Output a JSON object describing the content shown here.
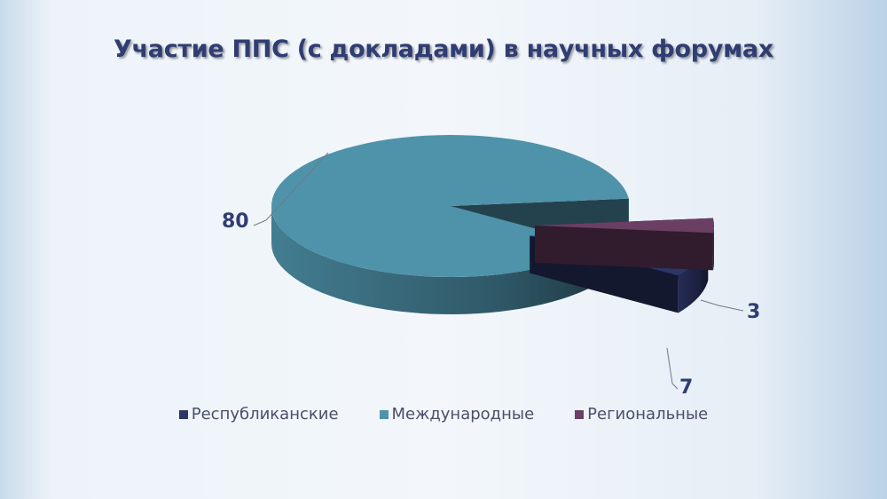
{
  "chart_data": {
    "type": "pie",
    "style": "3d-exploded",
    "title": "Участие ППС (с докладами) в научных форумах",
    "series": [
      {
        "name": "Республиканские",
        "value": 7,
        "color": "#2b3566",
        "exploded": true
      },
      {
        "name": "Международные",
        "value": 80,
        "color": "#4f93ab",
        "exploded": false
      },
      {
        "name": "Региональные",
        "value": 3,
        "color": "#6b3e63",
        "exploded": true
      }
    ],
    "legend_position": "bottom"
  }
}
